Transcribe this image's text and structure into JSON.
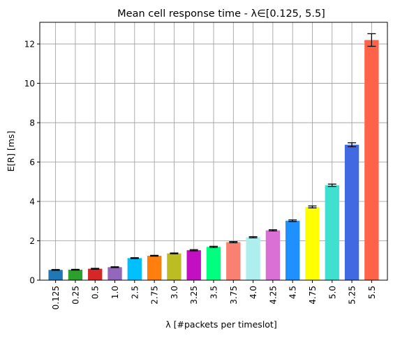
{
  "chart_data": {
    "type": "bar",
    "title": "Mean cell response time - λ∈[0.125, 5.5]",
    "xlabel": "λ [#packets per timeslot]",
    "ylabel": "E[R] [ms]",
    "categories": [
      "0.125",
      "0.25",
      "0.5",
      "1.0",
      "2.5",
      "2.75",
      "3.0",
      "3.25",
      "3.5",
      "3.75",
      "4.0",
      "4.25",
      "4.5",
      "4.75",
      "5.0",
      "5.25",
      "5.5"
    ],
    "values": [
      0.52,
      0.53,
      0.58,
      0.66,
      1.12,
      1.24,
      1.36,
      1.52,
      1.69,
      1.93,
      2.18,
      2.53,
      3.02,
      3.72,
      4.82,
      6.88,
      12.2
    ],
    "errors": [
      0.02,
      0.02,
      0.02,
      0.02,
      0.02,
      0.02,
      0.02,
      0.03,
      0.03,
      0.03,
      0.03,
      0.03,
      0.04,
      0.05,
      0.06,
      0.1,
      0.32
    ],
    "colors": [
      "#1f77b4",
      "#2ca02c",
      "#d62728",
      "#9467bd",
      "#00bfff",
      "#ff7f0e",
      "#bcbd22",
      "#c20fc2",
      "#00ff7f",
      "#fa8072",
      "#afeeee",
      "#da70d6",
      "#1e90ff",
      "#ffff00",
      "#40e0d0",
      "#4169e1",
      "#ff6347"
    ],
    "yticks": [
      "0",
      "2",
      "4",
      "6",
      "8",
      "10",
      "12"
    ],
    "ylim": [
      0,
      13.1
    ],
    "grid": true
  }
}
